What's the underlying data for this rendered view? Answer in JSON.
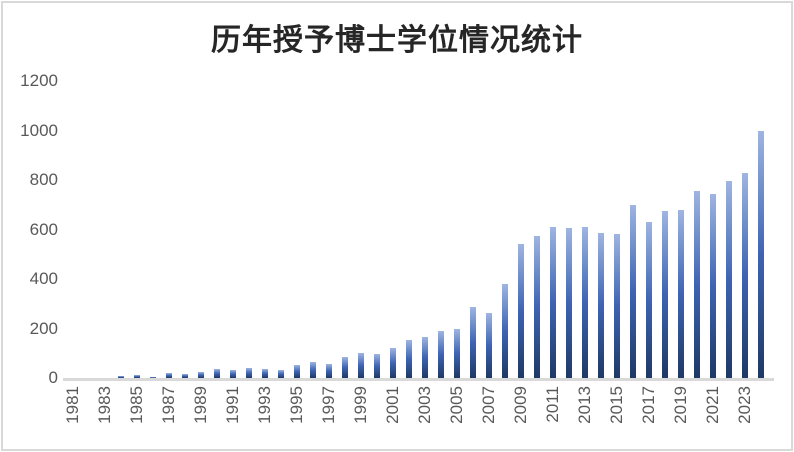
{
  "title": "历年授予博士学位情况统计",
  "chart_data": {
    "type": "bar",
    "title": "历年授予博士学位情况统计",
    "xlabel": "",
    "ylabel": "",
    "ylim": [
      0,
      1200
    ],
    "yticks": [
      0,
      200,
      400,
      600,
      800,
      1000,
      1200
    ],
    "grid": false,
    "legend": false,
    "x_label_every": 2,
    "xtick_labels": [
      "1981",
      "1983",
      "1985",
      "1987",
      "1989",
      "1991",
      "1993",
      "1995",
      "1997",
      "1999",
      "2001",
      "2003",
      "2005",
      "2007",
      "2009",
      "2011",
      "2013",
      "2015",
      "2017",
      "2019",
      "2021",
      "2023"
    ],
    "categories": [
      "1981",
      "1982",
      "1983",
      "1984",
      "1985",
      "1986",
      "1987",
      "1988",
      "1989",
      "1990",
      "1991",
      "1992",
      "1993",
      "1994",
      "1995",
      "1996",
      "1997",
      "1998",
      "1999",
      "2000",
      "2001",
      "2002",
      "2003",
      "2004",
      "2005",
      "2006",
      "2007",
      "2008",
      "2009",
      "2010",
      "2011",
      "2012",
      "2013",
      "2014",
      "2015",
      "2016",
      "2017",
      "2018",
      "2019",
      "2020",
      "2021",
      "2022",
      "2023",
      "2024"
    ],
    "values": [
      0,
      0,
      0,
      8,
      14,
      6,
      20,
      18,
      25,
      36,
      33,
      42,
      38,
      34,
      51,
      66,
      58,
      86,
      100,
      96,
      121,
      155,
      164,
      191,
      198,
      288,
      261,
      381,
      540,
      575,
      612,
      608,
      612,
      585,
      580,
      698,
      630,
      674,
      680,
      755,
      743,
      796,
      830,
      1000
    ],
    "bar_color_top": "#9FB5E1",
    "bar_color_mid": "#3D64B4",
    "bar_color_bottom": "#1F3864",
    "axis_label_color": "#595959",
    "title_color": "#262626",
    "baseline_color": "#D9D9D9"
  }
}
